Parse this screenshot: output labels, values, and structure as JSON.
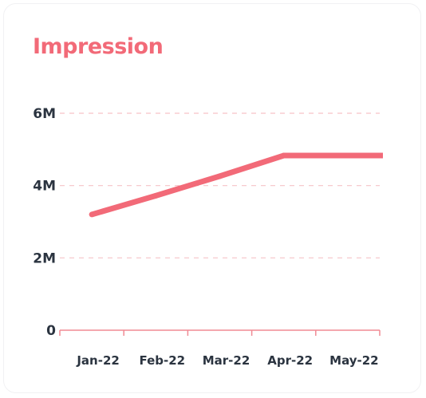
{
  "chart_data": {
    "type": "line",
    "title": "Impression",
    "categories": [
      "Jan-22",
      "Feb-22",
      "Mar-22",
      "Apr-22",
      "May-22"
    ],
    "series": [
      {
        "values": [
          3200000,
          3720000,
          4260000,
          4830000,
          4830000
        ]
      }
    ],
    "yticks": [
      {
        "value": 0,
        "label": "0"
      },
      {
        "value": 2000000,
        "label": "2M"
      },
      {
        "value": 4000000,
        "label": "4M"
      },
      {
        "value": 6000000,
        "label": "6M"
      }
    ],
    "ylim": [
      0,
      6000000
    ],
    "grid": true,
    "colors": {
      "line": "#f26a78",
      "grid": "#f6c2c8",
      "axis": "#f08a94",
      "text": "#2b3440"
    }
  }
}
